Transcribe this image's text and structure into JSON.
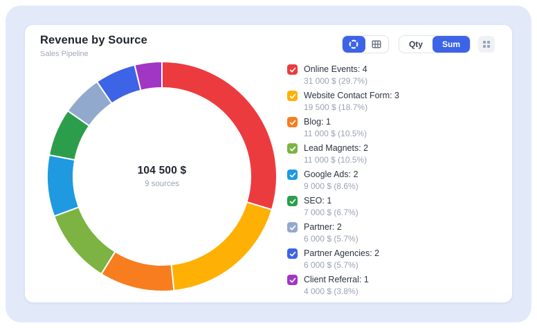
{
  "colors": {
    "accent": "#3d63e6",
    "panel_background": "#e2eafa",
    "card_background": "#ffffff",
    "muted_text": "#99a2b4"
  },
  "header": {
    "title": "Revenue by Source",
    "subtitle": "Sales Pipeline"
  },
  "toolbar": {
    "view_toggle": {
      "options": [
        {
          "icon": "donut-chart-icon",
          "active": true
        },
        {
          "icon": "table-icon",
          "active": false
        }
      ]
    },
    "mode_toggle": {
      "options": [
        {
          "label": "Qty",
          "active": false
        },
        {
          "label": "Sum",
          "active": true
        }
      ]
    },
    "more_button_icon": "grid-dots-icon"
  },
  "chart_data": {
    "type": "pie",
    "variant": "donut",
    "title": "Revenue by Source",
    "legend_position": "right",
    "start_angle_deg": 0,
    "direction": "clockwise",
    "currency": "$",
    "total_value": 104500,
    "center": {
      "total": "104 500 $",
      "subtitle": "9 sources"
    },
    "series": [
      {
        "name": "Online Events",
        "qty": 4,
        "value": 31000,
        "percent": 29.7,
        "color": "#ec3b3e",
        "label": "Online Events: 4",
        "value_label": "31 000 $ (29.7%)"
      },
      {
        "name": "Website Contact Form",
        "qty": 3,
        "value": 19500,
        "percent": 18.7,
        "color": "#ffb005",
        "label": "Website Contact Form: 3",
        "value_label": "19 500 $ (18.7%)"
      },
      {
        "name": "Blog",
        "qty": 1,
        "value": 11000,
        "percent": 10.5,
        "color": "#f77d1f",
        "label": "Blog: 1",
        "value_label": "11 000 $ (10.5%)"
      },
      {
        "name": "Lead Magnets",
        "qty": 2,
        "value": 11000,
        "percent": 10.5,
        "color": "#7cb342",
        "label": "Lead Magnets: 2",
        "value_label": "11 000 $ (10.5%)"
      },
      {
        "name": "Google Ads",
        "qty": 2,
        "value": 9000,
        "percent": 8.6,
        "color": "#1f9ae0",
        "label": "Google Ads: 2",
        "value_label": "9 000 $ (8.6%)"
      },
      {
        "name": "SEO",
        "qty": 1,
        "value": 7000,
        "percent": 6.7,
        "color": "#2c9e4b",
        "label": "SEO: 1",
        "value_label": "7 000 $ (6.7%)"
      },
      {
        "name": "Partner",
        "qty": 2,
        "value": 6000,
        "percent": 5.7,
        "color": "#92a9ce",
        "label": "Partner: 2",
        "value_label": "6 000 $ (5.7%)"
      },
      {
        "name": "Partner Agencies",
        "qty": 2,
        "value": 6000,
        "percent": 5.7,
        "color": "#3d63e6",
        "label": "Partner Agencies: 2",
        "value_label": "6 000 $ (5.7%)"
      },
      {
        "name": "Client Referral",
        "qty": 1,
        "value": 4000,
        "percent": 3.8,
        "color": "#a136c5",
        "label": "Client Referral: 1",
        "value_label": "4 000 $ (3.8%)"
      }
    ]
  }
}
